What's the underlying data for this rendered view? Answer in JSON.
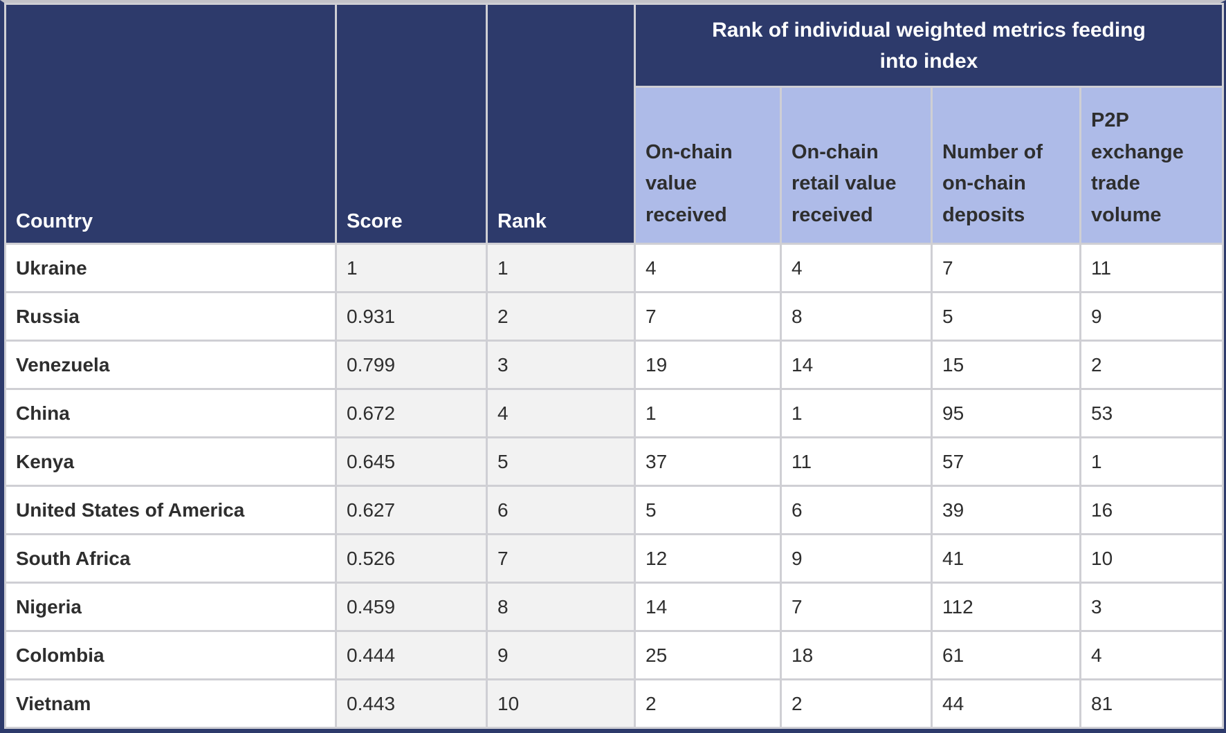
{
  "chart_data": {
    "type": "table",
    "title": "Rank of individual weighted metrics feeding into index",
    "columns": [
      "Country",
      "Score",
      "Rank",
      "On-chain value received",
      "On-chain retail value received",
      "Number of on-chain deposits",
      "P2P exchange trade volume"
    ],
    "rows": [
      [
        "Ukraine",
        "1",
        "1",
        "4",
        "4",
        "7",
        "11"
      ],
      [
        "Russia",
        "0.931",
        "2",
        "7",
        "8",
        "5",
        "9"
      ],
      [
        "Venezuela",
        "0.799",
        "3",
        "19",
        "14",
        "15",
        "2"
      ],
      [
        "China",
        "0.672",
        "4",
        "1",
        "1",
        "95",
        "53"
      ],
      [
        "Kenya",
        "0.645",
        "5",
        "37",
        "11",
        "57",
        "1"
      ],
      [
        "United States of America",
        "0.627",
        "6",
        "5",
        "6",
        "39",
        "16"
      ],
      [
        "South Africa",
        "0.526",
        "7",
        "12",
        "9",
        "41",
        "10"
      ],
      [
        "Nigeria",
        "0.459",
        "8",
        "14",
        "7",
        "112",
        "3"
      ],
      [
        "Colombia",
        "0.444",
        "9",
        "25",
        "18",
        "61",
        "4"
      ],
      [
        "Vietnam",
        "0.443",
        "10",
        "2",
        "2",
        "44",
        "81"
      ]
    ]
  },
  "table": {
    "columns": {
      "country": "Country",
      "score": "Score",
      "rank": "Rank"
    },
    "group_header": "Rank of individual weighted metrics feeding into index",
    "metric_columns": [
      "On-chain value received",
      "On-chain retail value received",
      "Number of on-chain deposits",
      "P2P exchange trade volume"
    ],
    "rows": [
      {
        "country": "Ukraine",
        "score": "1",
        "rank": "1",
        "metrics": [
          "4",
          "4",
          "7",
          "11"
        ]
      },
      {
        "country": "Russia",
        "score": "0.931",
        "rank": "2",
        "metrics": [
          "7",
          "8",
          "5",
          "9"
        ]
      },
      {
        "country": "Venezuela",
        "score": "0.799",
        "rank": "3",
        "metrics": [
          "19",
          "14",
          "15",
          "2"
        ]
      },
      {
        "country": "China",
        "score": "0.672",
        "rank": "4",
        "metrics": [
          "1",
          "1",
          "95",
          "53"
        ]
      },
      {
        "country": "Kenya",
        "score": "0.645",
        "rank": "5",
        "metrics": [
          "37",
          "11",
          "57",
          "1"
        ]
      },
      {
        "country": "United States of America",
        "score": "0.627",
        "rank": "6",
        "metrics": [
          "5",
          "6",
          "39",
          "16"
        ]
      },
      {
        "country": "South Africa",
        "score": "0.526",
        "rank": "7",
        "metrics": [
          "12",
          "9",
          "41",
          "10"
        ]
      },
      {
        "country": "Nigeria",
        "score": "0.459",
        "rank": "8",
        "metrics": [
          "14",
          "7",
          "112",
          "3"
        ]
      },
      {
        "country": "Colombia",
        "score": "0.444",
        "rank": "9",
        "metrics": [
          "25",
          "18",
          "61",
          "4"
        ]
      },
      {
        "country": "Vietnam",
        "score": "0.443",
        "rank": "10",
        "metrics": [
          "2",
          "2",
          "44",
          "81"
        ]
      }
    ]
  },
  "colors": {
    "header_navy": "#2d3a6b",
    "subheader_purple": "#aebbe8",
    "row_alt_gray": "#f2f2f2",
    "grid_line": "#cfcfd4",
    "text_dark": "#2e2e2e",
    "header_text": "#ffffff"
  }
}
